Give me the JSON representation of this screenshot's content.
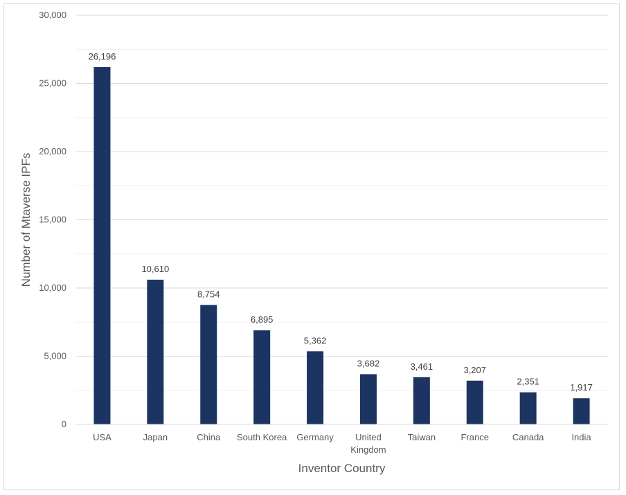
{
  "chart_data": {
    "type": "bar",
    "title": "",
    "xlabel": "Inventor Country",
    "ylabel": "Number of Mtaverse IPFs",
    "ylim": [
      0,
      30000
    ],
    "y_ticks": [
      0,
      5000,
      10000,
      15000,
      20000,
      25000,
      30000
    ],
    "y_tick_labels": [
      "0",
      "5,000",
      "10,000",
      "15,000",
      "20,000",
      "25,000",
      "30,000"
    ],
    "grid": true,
    "bar_color": "#1b3461",
    "categories": [
      [
        "USA"
      ],
      [
        "Japan"
      ],
      [
        "China"
      ],
      [
        "South Korea"
      ],
      [
        "Germany"
      ],
      [
        "United",
        "Kingdom"
      ],
      [
        "Taiwan"
      ],
      [
        "France"
      ],
      [
        "Canada"
      ],
      [
        "India"
      ]
    ],
    "values": [
      26196,
      10610,
      8754,
      6895,
      5362,
      3682,
      3461,
      3207,
      2351,
      1917
    ],
    "value_labels": [
      "26,196",
      "10,610",
      "8,754",
      "6,895",
      "5,362",
      "3,682",
      "3,461",
      "3,207",
      "2,351",
      "1,917"
    ]
  }
}
